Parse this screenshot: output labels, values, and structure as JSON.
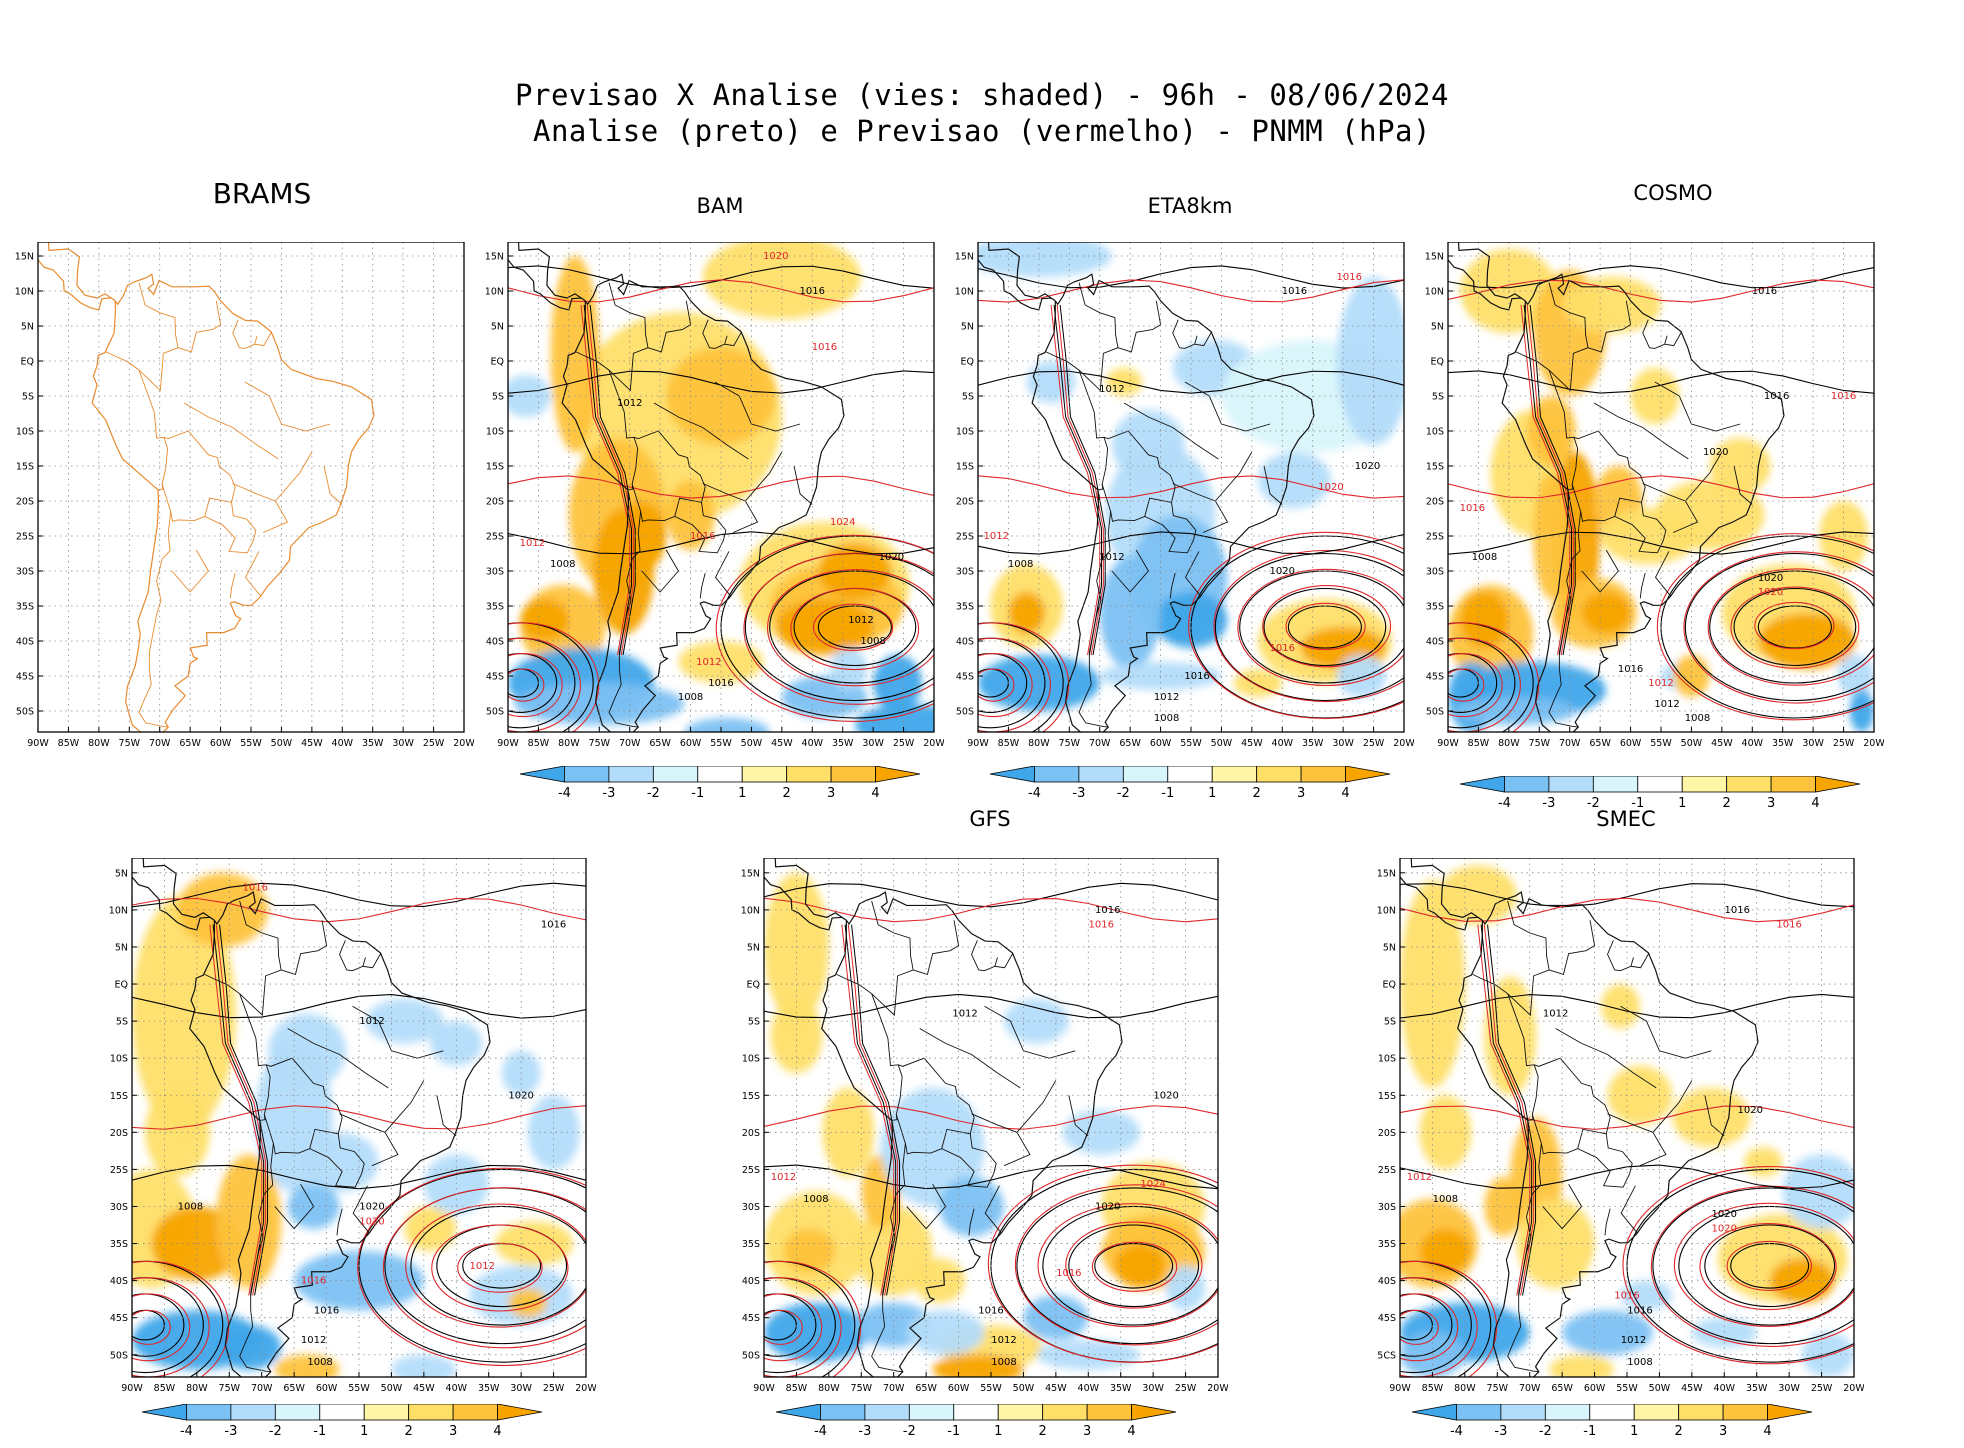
{
  "chart_data": {
    "type": "heatmap",
    "title": "Previsao X Analise (vies: shaded) - 96h - 08/06/2024",
    "subtitle": "Analise (preto) e Previsao (vermelho) - PNMM (hPa)",
    "variable": "PNMM (hPa)",
    "forecast_hour": "96h",
    "date": "08/06/2024",
    "x_ticks": [
      "90W",
      "85W",
      "80W",
      "75W",
      "70W",
      "65W",
      "60W",
      "55W",
      "50W",
      "45W",
      "40W",
      "35W",
      "30W",
      "25W",
      "20W"
    ],
    "y_ticks_top_row": [
      "15N",
      "10N",
      "5N",
      "EQ",
      "5S",
      "10S",
      "15S",
      "20S",
      "25S",
      "30S",
      "35S",
      "40S",
      "45S",
      "50S"
    ],
    "y_ticks_bottom_left": [
      "5N",
      "10N",
      "5N",
      "EQ",
      "5S",
      "10S",
      "15S",
      "20S",
      "25S",
      "30S",
      "35S",
      "40S",
      "45S",
      "50S"
    ],
    "y_ticks_bottom_right": [
      "15N",
      "10N",
      "5N",
      "EQ",
      "5S",
      "10S",
      "15S",
      "20S",
      "25S",
      "30S",
      "35S",
      "40S",
      "45S",
      "5CS"
    ],
    "xlim": [
      -90,
      -20
    ],
    "ylim": [
      -53,
      17
    ],
    "colorbar": {
      "labels": [
        "-4",
        "-3",
        "-2",
        "-1",
        "1",
        "2",
        "3",
        "4"
      ],
      "colors": [
        "#3fa6ea",
        "#7cc1f3",
        "#b3dcfa",
        "#d8f5fb",
        "#ffffff",
        "#fff5a6",
        "#fedf68",
        "#fec33c",
        "#f7a400"
      ]
    },
    "colors": {
      "analysis": "#000000",
      "forecast": "#e0262a",
      "coast": "#e98a2e"
    },
    "panels": [
      {
        "name": "BRAMS",
        "has_data": false,
        "has_colorbar": false,
        "ytick_set": "top",
        "isobar_labels": []
      },
      {
        "name": "BAM",
        "has_data": true,
        "has_colorbar": true,
        "ytick_set": "top",
        "isobar_labels": [
          {
            "text": "1016",
            "lon": -40,
            "lat": 10,
            "c": "k"
          },
          {
            "text": "1012",
            "lon": -70,
            "lat": -6,
            "c": "k"
          },
          {
            "text": "1020",
            "lon": -27,
            "lat": -28,
            "c": "k"
          },
          {
            "text": "1012",
            "lon": -32,
            "lat": -37,
            "c": "k"
          },
          {
            "text": "1008",
            "lon": -30,
            "lat": -40,
            "c": "k"
          },
          {
            "text": "1016",
            "lon": -55,
            "lat": -46,
            "c": "k"
          },
          {
            "text": "1008",
            "lon": -60,
            "lat": -48,
            "c": "k"
          },
          {
            "text": "1008",
            "lon": -81,
            "lat": -29,
            "c": "k"
          },
          {
            "text": "1024",
            "lon": -35,
            "lat": -23,
            "c": "r"
          },
          {
            "text": "1016",
            "lon": -58,
            "lat": -25,
            "c": "r"
          },
          {
            "text": "1012",
            "lon": -86,
            "lat": -26,
            "c": "r"
          },
          {
            "text": "1012",
            "lon": -57,
            "lat": -43,
            "c": "r"
          },
          {
            "text": "1020",
            "lon": -46,
            "lat": 15,
            "c": "r"
          },
          {
            "text": "1016",
            "lon": -38,
            "lat": 2,
            "c": "r"
          }
        ]
      },
      {
        "name": "ETA8km",
        "has_data": true,
        "has_colorbar": true,
        "ytick_set": "top",
        "isobar_labels": [
          {
            "text": "1016",
            "lon": -38,
            "lat": 10,
            "c": "k"
          },
          {
            "text": "1012",
            "lon": -68,
            "lat": -4,
            "c": "k"
          },
          {
            "text": "1020",
            "lon": -26,
            "lat": -15,
            "c": "k"
          },
          {
            "text": "1020",
            "lon": -40,
            "lat": -30,
            "c": "k"
          },
          {
            "text": "1016",
            "lon": -54,
            "lat": -45,
            "c": "k"
          },
          {
            "text": "1012",
            "lon": -59,
            "lat": -48,
            "c": "k"
          },
          {
            "text": "1008",
            "lon": -59,
            "lat": -51,
            "c": "k"
          },
          {
            "text": "1008",
            "lon": -83,
            "lat": -29,
            "c": "k"
          },
          {
            "text": "1012",
            "lon": -68,
            "lat": -28,
            "c": "k"
          },
          {
            "text": "1016",
            "lon": -29,
            "lat": 12,
            "c": "r"
          },
          {
            "text": "1012",
            "lon": -87,
            "lat": -25,
            "c": "r"
          },
          {
            "text": "1020",
            "lon": -32,
            "lat": -18,
            "c": "r"
          },
          {
            "text": "1016",
            "lon": -40,
            "lat": -41,
            "c": "r"
          }
        ]
      },
      {
        "name": "COSMO",
        "has_data": true,
        "has_colorbar": true,
        "ytick_set": "top",
        "isobar_labels": [
          {
            "text": "1016",
            "lon": -38,
            "lat": 10,
            "c": "k"
          },
          {
            "text": "1016",
            "lon": -36,
            "lat": -5,
            "c": "k"
          },
          {
            "text": "1020",
            "lon": -46,
            "lat": -13,
            "c": "k"
          },
          {
            "text": "1020",
            "lon": -37,
            "lat": -31,
            "c": "k"
          },
          {
            "text": "1016",
            "lon": -60,
            "lat": -44,
            "c": "k"
          },
          {
            "text": "1012",
            "lon": -54,
            "lat": -49,
            "c": "k"
          },
          {
            "text": "1008",
            "lon": -49,
            "lat": -51,
            "c": "k"
          },
          {
            "text": "1008",
            "lon": -84,
            "lat": -28,
            "c": "k"
          },
          {
            "text": "1016",
            "lon": -25,
            "lat": -5,
            "c": "r"
          },
          {
            "text": "1020",
            "lon": -37,
            "lat": -33,
            "c": "r"
          },
          {
            "text": "1016",
            "lon": -86,
            "lat": -21,
            "c": "r"
          },
          {
            "text": "1012",
            "lon": -55,
            "lat": -46,
            "c": "r"
          }
        ]
      },
      {
        "name": "",
        "has_data": true,
        "has_colorbar": true,
        "ytick_set": "bottom_left",
        "isobar_labels": [
          {
            "text": "1016",
            "lon": -25,
            "lat": 8,
            "c": "k"
          },
          {
            "text": "1012",
            "lon": -53,
            "lat": -5,
            "c": "k"
          },
          {
            "text": "1020",
            "lon": -30,
            "lat": -15,
            "c": "k"
          },
          {
            "text": "1020",
            "lon": -53,
            "lat": -30,
            "c": "k"
          },
          {
            "text": "1016",
            "lon": -60,
            "lat": -44,
            "c": "k"
          },
          {
            "text": "1012",
            "lon": -62,
            "lat": -48,
            "c": "k"
          },
          {
            "text": "1008",
            "lon": -61,
            "lat": -51,
            "c": "k"
          },
          {
            "text": "1008",
            "lon": -81,
            "lat": -30,
            "c": "k"
          },
          {
            "text": "1016",
            "lon": -71,
            "lat": 13,
            "c": "r"
          },
          {
            "text": "1020",
            "lon": -53,
            "lat": -32,
            "c": "r"
          },
          {
            "text": "1012",
            "lon": -36,
            "lat": -38,
            "c": "r"
          },
          {
            "text": "1016",
            "lon": -62,
            "lat": -40,
            "c": "r"
          }
        ]
      },
      {
        "name": "GFS",
        "has_data": true,
        "has_colorbar": true,
        "ytick_set": "top",
        "isobar_labels": [
          {
            "text": "1016",
            "lon": -37,
            "lat": 10,
            "c": "k"
          },
          {
            "text": "1012",
            "lon": -59,
            "lat": -4,
            "c": "k"
          },
          {
            "text": "1020",
            "lon": -28,
            "lat": -15,
            "c": "k"
          },
          {
            "text": "1020",
            "lon": -37,
            "lat": -30,
            "c": "k"
          },
          {
            "text": "1016",
            "lon": -55,
            "lat": -44,
            "c": "k"
          },
          {
            "text": "1012",
            "lon": -53,
            "lat": -48,
            "c": "k"
          },
          {
            "text": "1008",
            "lon": -53,
            "lat": -51,
            "c": "k"
          },
          {
            "text": "1008",
            "lon": -82,
            "lat": -29,
            "c": "k"
          },
          {
            "text": "1024",
            "lon": -30,
            "lat": -27,
            "c": "r"
          },
          {
            "text": "1016",
            "lon": -43,
            "lat": -39,
            "c": "r"
          },
          {
            "text": "1016",
            "lon": -38,
            "lat": 8,
            "c": "r"
          },
          {
            "text": "1012",
            "lon": -87,
            "lat": -26,
            "c": "r"
          }
        ]
      },
      {
        "name": "SMEC",
        "has_data": true,
        "has_colorbar": true,
        "ytick_set": "bottom_right",
        "isobar_labels": [
          {
            "text": "1016",
            "lon": -38,
            "lat": 10,
            "c": "k"
          },
          {
            "text": "1012",
            "lon": -66,
            "lat": -4,
            "c": "k"
          },
          {
            "text": "1020",
            "lon": -36,
            "lat": -17,
            "c": "k"
          },
          {
            "text": "1020",
            "lon": -40,
            "lat": -31,
            "c": "k"
          },
          {
            "text": "1016",
            "lon": -53,
            "lat": -44,
            "c": "k"
          },
          {
            "text": "1012",
            "lon": -54,
            "lat": -48,
            "c": "k"
          },
          {
            "text": "1008",
            "lon": -53,
            "lat": -51,
            "c": "k"
          },
          {
            "text": "1008",
            "lon": -83,
            "lat": -29,
            "c": "k"
          },
          {
            "text": "1016",
            "lon": -30,
            "lat": 8,
            "c": "r"
          },
          {
            "text": "1020",
            "lon": -40,
            "lat": -33,
            "c": "r"
          },
          {
            "text": "1012",
            "lon": -87,
            "lat": -26,
            "c": "r"
          },
          {
            "text": "1016",
            "lon": -55,
            "lat": -42,
            "c": "r"
          }
        ]
      }
    ]
  }
}
